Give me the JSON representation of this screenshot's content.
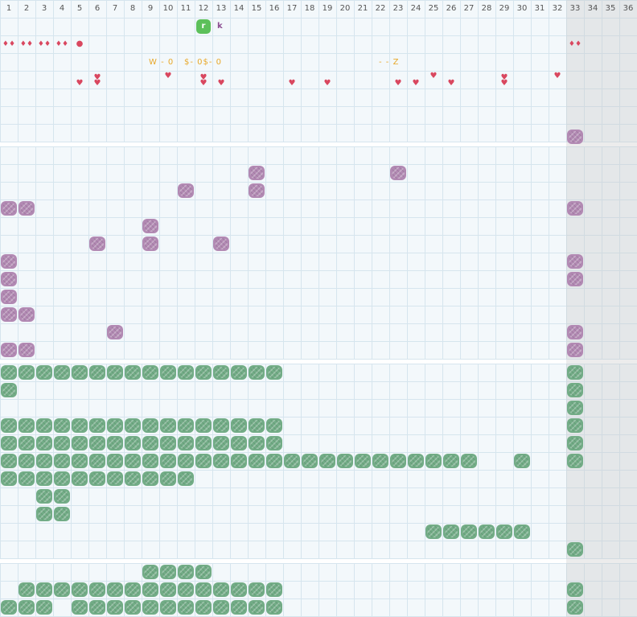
{
  "columns": [
    "1",
    "2",
    "3",
    "4",
    "5",
    "6",
    "7",
    "8",
    "9",
    "10",
    "11",
    "12",
    "13",
    "14",
    "15",
    "16",
    "17",
    "18",
    "19",
    "20",
    "21",
    "22",
    "23",
    "24",
    "25",
    "26",
    "27",
    "28",
    "29",
    "30",
    "31",
    "32",
    "33",
    "34",
    "35",
    "36"
  ],
  "colors": {
    "purple_block": "#b289b3",
    "green_block": "#72ac86",
    "heart": "#d9475f",
    "note": "#e8a82a",
    "player": "#5cc05a",
    "player_tag": "#8b4c91"
  },
  "player": {
    "badge": "r",
    "tag": "k",
    "col": 12,
    "row": 1
  },
  "notes": [
    {
      "text": "W - 0",
      "col": 9,
      "row": 3
    },
    {
      "text": "$- 0$- 0",
      "col": 11,
      "row": 3
    },
    {
      "text": "- - Z",
      "col": 22,
      "row": 3
    }
  ],
  "pairs": [
    1,
    2,
    3,
    4,
    33
  ],
  "single_dot": 5,
  "hearts": [
    5,
    6,
    10,
    12,
    13,
    17,
    19,
    23,
    24,
    25,
    26,
    29,
    32
  ],
  "double_hearts": [
    6,
    12,
    29
  ],
  "purple_blocks": [
    [
      33,
      8
    ],
    [
      15,
      9
    ],
    [
      23,
      9
    ],
    [
      11,
      10
    ],
    [
      15,
      10
    ],
    [
      1,
      11
    ],
    [
      2,
      11
    ],
    [
      33,
      11
    ],
    [
      9,
      12
    ],
    [
      6,
      13
    ],
    [
      9,
      13
    ],
    [
      13,
      13
    ],
    [
      1,
      14
    ],
    [
      33,
      14
    ],
    [
      1,
      15
    ],
    [
      33,
      15
    ],
    [
      1,
      16
    ],
    [
      1,
      17
    ],
    [
      2,
      17
    ],
    [
      7,
      18
    ],
    [
      33,
      18
    ],
    [
      1,
      19
    ],
    [
      2,
      19
    ],
    [
      33,
      19
    ]
  ],
  "green_rows": [
    {
      "row": 20,
      "cols": [
        1,
        2,
        3,
        4,
        5,
        6,
        7,
        8,
        9,
        10,
        11,
        12,
        13,
        14,
        15,
        16,
        33
      ]
    },
    {
      "row": 21,
      "cols": [
        1,
        33
      ]
    },
    {
      "row": 22,
      "cols": [
        33
      ]
    },
    {
      "row": 23,
      "cols": [
        1,
        2,
        3,
        4,
        5,
        6,
        7,
        8,
        9,
        10,
        11,
        12,
        13,
        14,
        15,
        16,
        33
      ]
    },
    {
      "row": 24,
      "cols": [
        1,
        2,
        3,
        4,
        5,
        6,
        7,
        8,
        9,
        10,
        11,
        12,
        13,
        14,
        15,
        16,
        33
      ]
    },
    {
      "row": 25,
      "cols": [
        1,
        2,
        3,
        4,
        5,
        6,
        7,
        8,
        9,
        10,
        11,
        12,
        13,
        14,
        15,
        16,
        17,
        18,
        19,
        20,
        21,
        22,
        23,
        24,
        25,
        26,
        27,
        30,
        33
      ]
    },
    {
      "row": 26,
      "cols": [
        1,
        2,
        3,
        4,
        5,
        6,
        7,
        8,
        9,
        10,
        11
      ]
    },
    {
      "row": 27,
      "cols": [
        3,
        4
      ]
    },
    {
      "row": 28,
      "cols": [
        3,
        4
      ]
    },
    {
      "row": 29,
      "cols": [
        25,
        26,
        27,
        28,
        29,
        30
      ]
    },
    {
      "row": 30,
      "cols": [
        33
      ]
    },
    {
      "row": 31,
      "cols": [
        9,
        10,
        11,
        12
      ]
    },
    {
      "row": 32,
      "cols": [
        2,
        3,
        4,
        5,
        6,
        7,
        8,
        9,
        10,
        11,
        12,
        13,
        14,
        15,
        16,
        33
      ]
    },
    {
      "row": 33,
      "cols": [
        1,
        2,
        3,
        5,
        6,
        7,
        8,
        9,
        10,
        11,
        12,
        13,
        14,
        15,
        16,
        33
      ]
    }
  ]
}
